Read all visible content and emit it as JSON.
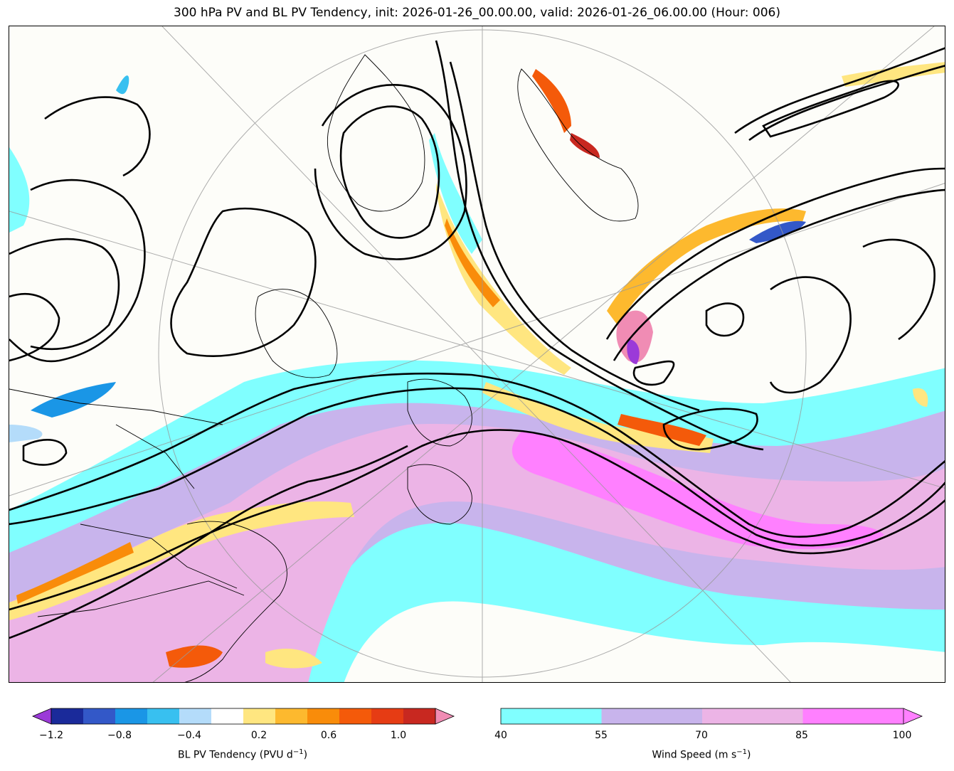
{
  "title": "300 hPa PV and BL PV Tendency, init: 2026-01-26_00.00.00, valid: 2026-01-26_06.00.00 (Hour: 006)",
  "colorbars": [
    {
      "id": "pv-tendency",
      "label_main": "BL PV Tendency (PVU d",
      "label_exp": "−1",
      "label_close": ")",
      "ticks": [
        "−1.2",
        "−0.8",
        "−0.4",
        "0.2",
        "0.6",
        "1.0"
      ],
      "colors": [
        "#9b3ad8",
        "#1a2a9a",
        "#3358c8",
        "#1a96e6",
        "#38c0f0",
        "#b4dcfa",
        "#ffffff",
        "#ffe680",
        "#fdb92e",
        "#f98c0a",
        "#f45a0a",
        "#e63c14",
        "#c82820",
        "#f08cb4"
      ],
      "extend": "both"
    },
    {
      "id": "wind-speed",
      "label_main": "Wind Speed (m s",
      "label_exp": "−1",
      "label_close": ")",
      "ticks": [
        "40",
        "55",
        "70",
        "85",
        "100"
      ],
      "colors": [
        "#80ffff",
        "#c8b4ec",
        "#ecb4e6",
        "#ff80ff"
      ],
      "extend": "max"
    }
  ],
  "map": {
    "background": "#fdfdf9",
    "pv_contour_color": "#000000",
    "wind_levels": [
      "40",
      "55",
      "70",
      "85"
    ],
    "fields": [
      "300 hPa PV contours",
      "BL PV tendency shading",
      "300 hPa wind speed shading"
    ]
  }
}
